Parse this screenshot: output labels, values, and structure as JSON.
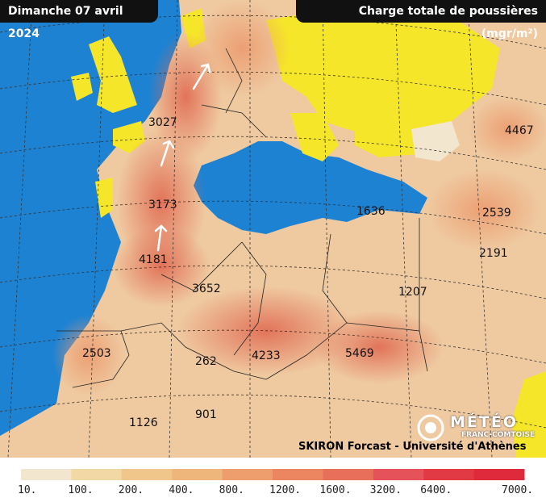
{
  "header": {
    "date": "Dimanche 07 avril 2024",
    "title": "Charge totale de poussières (mgr/m²)"
  },
  "map_values": [
    "3027",
    "3173",
    "4181",
    "3652",
    "2503",
    "262",
    "4233",
    "5469",
    "1126",
    "901",
    "1636",
    "1207",
    "2539",
    "2191",
    "4467"
  ],
  "credit": "SKIRON Forcast - Université d'Athènes",
  "logo": {
    "name": "MÉTÉO",
    "sub": "FRANC-COMTOISE"
  },
  "legend": {
    "labels": [
      "10.",
      "100.",
      "200.",
      "400.",
      "800.",
      "1200.",
      "1600.",
      "3200.",
      "6400.",
      "7000."
    ],
    "colors": [
      "#f3e6cf",
      "#f2d8a4",
      "#f0c68a",
      "#efb67c",
      "#ee9e6c",
      "#ec8660",
      "#e8705a",
      "#e6525a",
      "#e23a44",
      "#de2a3a"
    ]
  }
}
